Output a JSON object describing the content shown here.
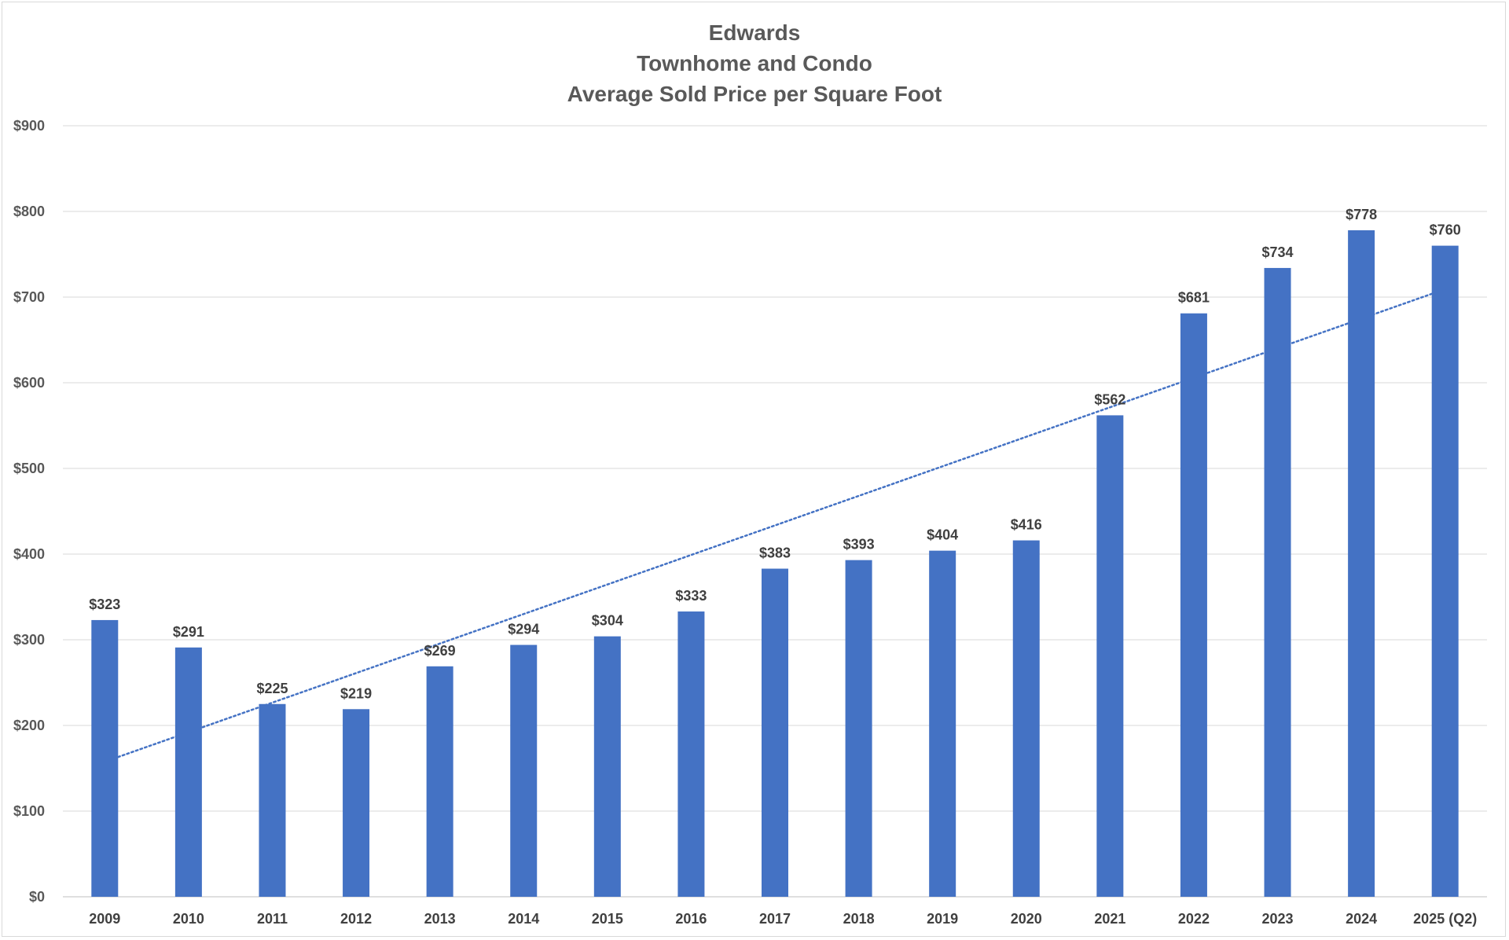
{
  "chart_data": {
    "type": "bar",
    "title": [
      "Edwards",
      "Townhome and Condo",
      "Average Sold Price per Square Foot"
    ],
    "xlabel": "",
    "ylabel": "",
    "categories": [
      "2009",
      "2010",
      "2011",
      "2012",
      "2013",
      "2014",
      "2015",
      "2016",
      "2017",
      "2018",
      "2019",
      "2020",
      "2021",
      "2022",
      "2023",
      "2024",
      "2025 (Q2)"
    ],
    "values": [
      323,
      291,
      225,
      219,
      269,
      294,
      304,
      333,
      383,
      393,
      404,
      416,
      562,
      681,
      734,
      778,
      760
    ],
    "data_labels": [
      "$323",
      "$291",
      "$225",
      "$219",
      "$269",
      "$294",
      "$304",
      "$333",
      "$383",
      "$393",
      "$404",
      "$416",
      "$562",
      "$681",
      "$734",
      "$778",
      "$760"
    ],
    "ylim": [
      0,
      900
    ],
    "yticks": [
      0,
      100,
      200,
      300,
      400,
      500,
      600,
      700,
      800,
      900
    ],
    "ytick_labels": [
      "$0",
      "$100",
      "$200",
      "$300",
      "$400",
      "$500",
      "$600",
      "$700",
      "$800",
      "$900"
    ],
    "grid": true,
    "legend": "none",
    "trendline": {
      "type": "linear",
      "style": "dotted"
    },
    "colors": {
      "bar": "#4472C4",
      "trendline": "#4472C4",
      "grid": "#d9d9d9",
      "title": "#595959",
      "labels": "#404040"
    }
  }
}
